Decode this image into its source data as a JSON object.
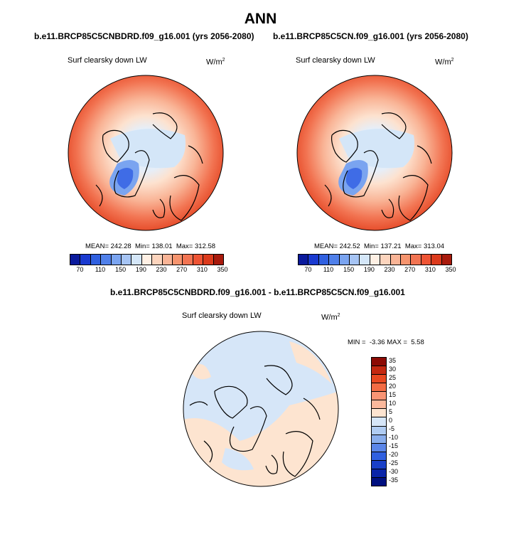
{
  "header": {
    "title": "ANN"
  },
  "colors": {
    "abs_scale": [
      "#0a1a9c",
      "#1a3ad0",
      "#3060e0",
      "#5080ea",
      "#7aa4f0",
      "#a6c4f4",
      "#d4e6f8",
      "#fff0e4",
      "#fcd4bd",
      "#f9b496",
      "#f6946e",
      "#f27452",
      "#ee5434",
      "#dc3a1c",
      "#a81a0c"
    ],
    "diff_scale": [
      "#8c0a04",
      "#c42810",
      "#e84820",
      "#f36c44",
      "#f89474",
      "#fbb89c",
      "#fde4d0",
      "#d6e6f8",
      "#b0ccf2",
      "#8aaeec",
      "#5b86e8",
      "#3060e0",
      "#1a40c8",
      "#0a24a8",
      "#001080"
    ]
  },
  "chart_data": [
    {
      "type": "heatmap",
      "title": "b.e11.BRCP85C5CNBDRD.f09_g16.001 (yrs 2056-2080)",
      "variable": "Surf clearsky down LW",
      "units": "W/m",
      "units_exp": "2",
      "stats": {
        "mean_label": "MEAN=",
        "mean": "242.28",
        "min_label": "Min=",
        "min": "138.01",
        "max_label": "Max=",
        "max": "312.58"
      },
      "colorbar_ticks": [
        "70",
        "110",
        "150",
        "190",
        "230",
        "270",
        "310",
        "350"
      ]
    },
    {
      "type": "heatmap",
      "title": "b.e11.BRCP85C5CN.f09_g16.001 (yrs 2056-2080)",
      "variable": "Surf clearsky down LW",
      "units": "W/m",
      "units_exp": "2",
      "stats": {
        "mean_label": "MEAN=",
        "mean": "242.52",
        "min_label": "Min=",
        "min": "137.21",
        "max_label": "Max=",
        "max": "313.04"
      },
      "colorbar_ticks": [
        "70",
        "110",
        "150",
        "190",
        "230",
        "270",
        "310",
        "350"
      ]
    },
    {
      "type": "heatmap",
      "title": "b.e11.BRCP85C5CNBDRD.f09_g16.001 - b.e11.BRCP85C5CN.f09_g16.001",
      "variable": "Surf clearsky down LW",
      "units": "W/m",
      "units_exp": "2",
      "stats": {
        "min_label": "MIN =",
        "min": "-3.36",
        "max_label": "MAX =",
        "max": "5.58"
      },
      "colorbar_ticks": [
        "35",
        "30",
        "25",
        "20",
        "15",
        "10",
        "5",
        "0",
        "-5",
        "-10",
        "-15",
        "-20",
        "-25",
        "-30",
        "-35"
      ]
    }
  ]
}
